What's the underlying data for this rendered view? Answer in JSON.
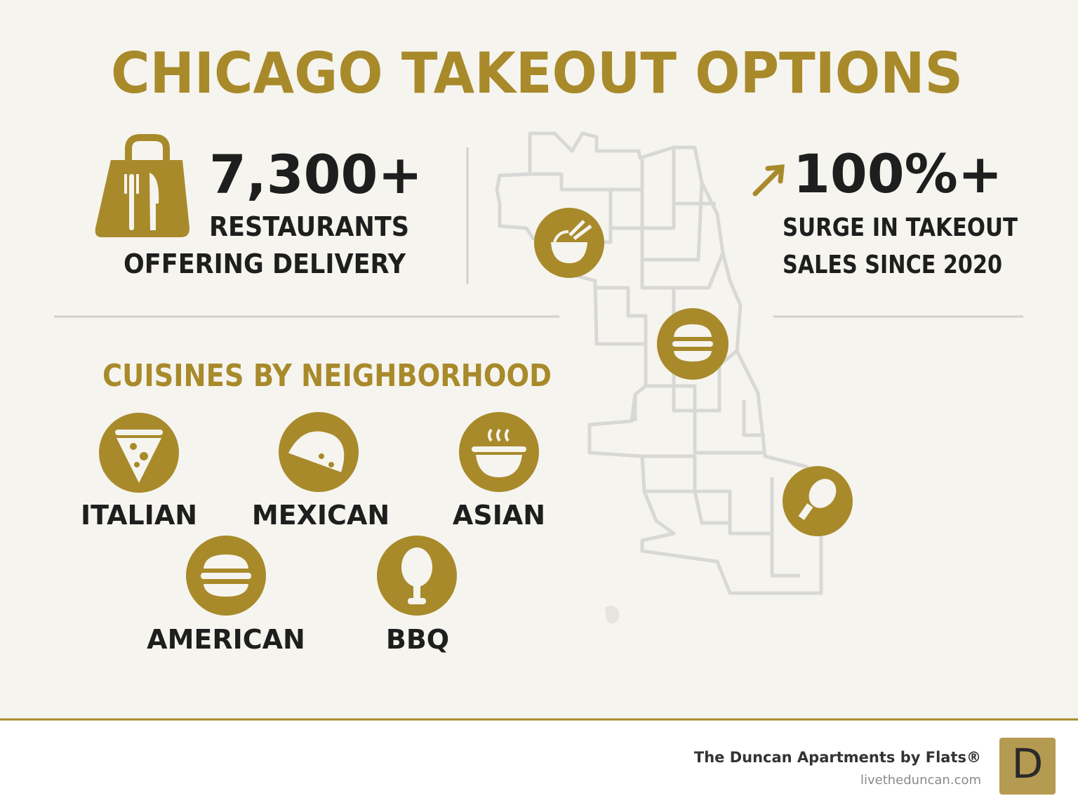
{
  "title": "CHICAGO TAKEOUT OPTIONS",
  "stat_left": {
    "number": "7,300+",
    "line1": "RESTAURANTS",
    "line2": "OFFERING DELIVERY"
  },
  "stat_right": {
    "number": "100%+",
    "line1": "SURGE IN TAKEOUT",
    "line2": "SALES SINCE 2020"
  },
  "section_title": "CUISINES BY NEIGHBORHOOD",
  "cuisines": [
    "ITALIAN",
    "MEXICAN",
    "ASIAN",
    "AMERICAN",
    "BBQ"
  ],
  "footer": {
    "name": "The Duncan Apartments by Flats®",
    "url": "livetheduncan.com",
    "logo": "D"
  }
}
